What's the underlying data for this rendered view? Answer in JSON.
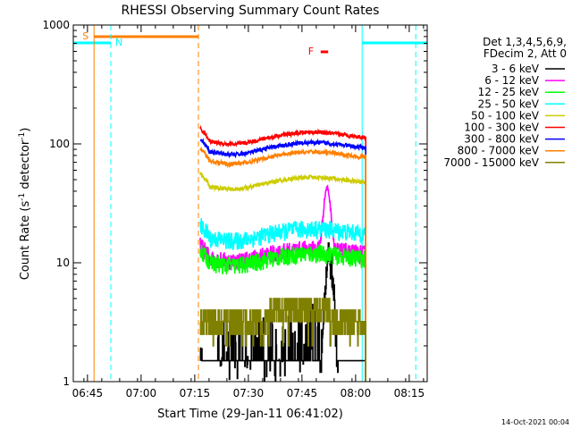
{
  "chart_data": {
    "type": "line",
    "title": "RHESSI Observing Summary Count Rates",
    "xlabel": "Start Time (29-Jan-11 06:41:02)",
    "ylabel_main": "Count Rate (s",
    "ylabel_exp1": "-1",
    "ylabel_mid": " detector",
    "ylabel_exp2": "-1",
    "ylabel_end": ")",
    "x_unit": "minutes since 06:41:02",
    "xlim": [
      0,
      99
    ],
    "ylim": [
      1,
      1000
    ],
    "y_scale": "log",
    "x_ticks": [
      {
        "label": "06:45",
        "t": 3.97
      },
      {
        "label": "07:00",
        "t": 18.97
      },
      {
        "label": "07:15",
        "t": 33.97
      },
      {
        "label": "07:30",
        "t": 48.97
      },
      {
        "label": "07:45",
        "t": 63.97
      },
      {
        "label": "08:00",
        "t": 78.97
      },
      {
        "label": "08:15",
        "t": 93.97
      }
    ],
    "y_ticks": [
      {
        "label": "1",
        "v": 1
      },
      {
        "label": "10",
        "v": 10
      },
      {
        "label": "100",
        "v": 100
      },
      {
        "label": "1000",
        "v": 1000
      }
    ],
    "legend_header": [
      "Det 1,3,4,5,6,9,",
      "FDecim 2, Att 0"
    ],
    "legend_placement": "right",
    "series": [
      {
        "name": "3 - 6 keV",
        "color": "#000000",
        "kind": "spiky",
        "base": 1.5,
        "peak_t": 71.5,
        "peak_v": 15
      },
      {
        "name": "6 - 12 keV",
        "color": "#ff00ff",
        "base": 11.5,
        "bump_t": 71,
        "bump_v": 30
      },
      {
        "name": "12 - 25 keV",
        "color": "#00ff00",
        "base": 10.5
      },
      {
        "name": "25 - 50 keV",
        "color": "#00ffff",
        "base": 17
      },
      {
        "name": "50 - 100 keV",
        "color": "#cccc00",
        "base": 46
      },
      {
        "name": "100 - 300 keV",
        "color": "#ff0000",
        "base": 110
      },
      {
        "name": "300 - 800 keV",
        "color": "#0000ff",
        "base": 90
      },
      {
        "name": "800 - 7000 keV",
        "color": "#ff8000",
        "base": 75
      },
      {
        "name": "7000 - 15000 keV",
        "color": "#808000",
        "kind": "steps",
        "base": 3.2
      }
    ],
    "data_range": [
      35.5,
      81.8
    ],
    "flags": {
      "saa_label": "S",
      "saa_color": "#ff8000",
      "night_label": "N",
      "night_color": "#00ffff",
      "flare_label": "F",
      "flare_color": "#ff0000",
      "saa_interval": [
        5.8,
        35.0
      ],
      "saa_end_dashed": 35.0,
      "night_intervals": [
        [
          0,
          10.5
        ],
        [
          80.8,
          99
        ]
      ],
      "night_start_dashed": 10.5,
      "night_end_dashed": 95.8,
      "night_line_solid": 80.8,
      "flare_interval": [
        69.2,
        71.3
      ]
    },
    "footer_date": "14-Oct-2021 00:04"
  }
}
